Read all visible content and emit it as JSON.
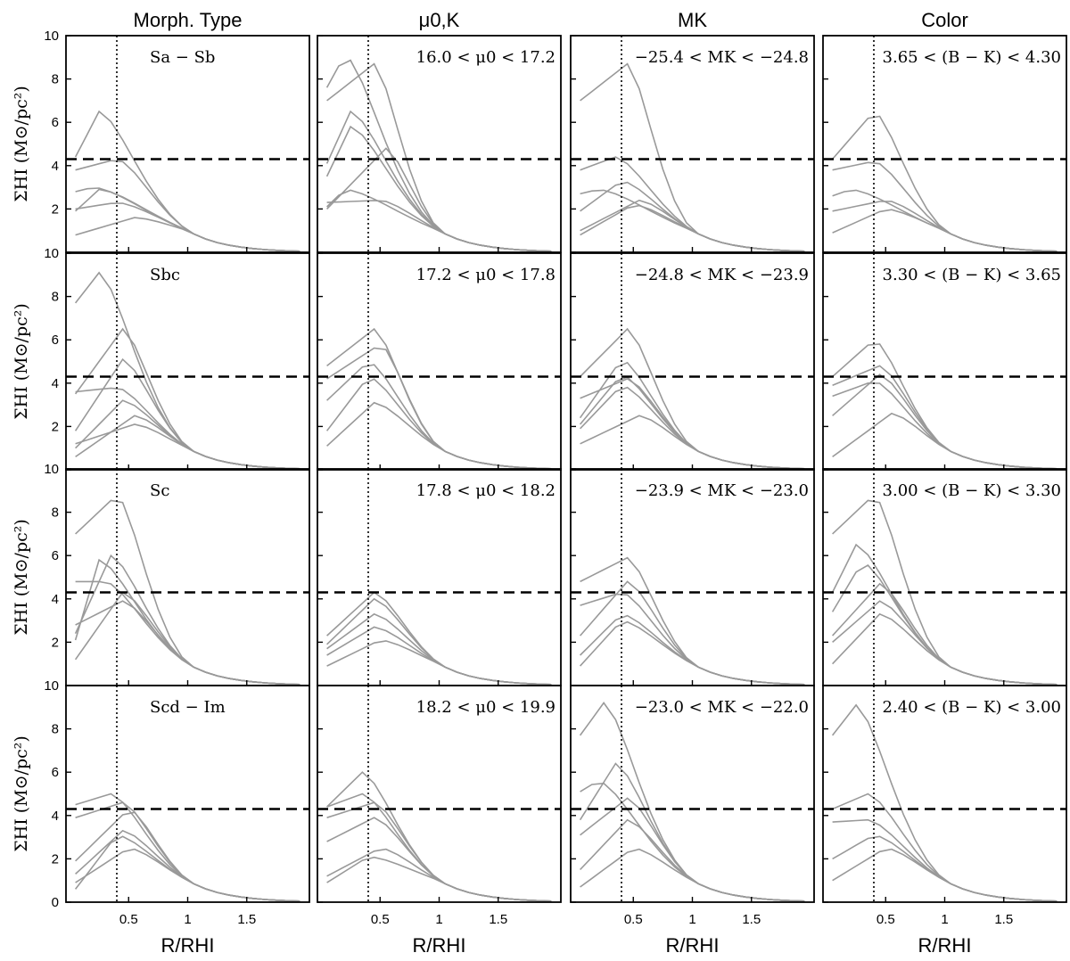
{
  "figure": {
    "col_titles": [
      "Morph. Type",
      "μ0,K",
      "MK",
      "Color"
    ],
    "ylabel": "ΣHI (M⊙/pc²)",
    "xlabel": "R/RHI",
    "ytick_labels": [
      "0",
      "2",
      "4",
      "6",
      "8",
      "10"
    ],
    "xtick_labels": [
      "0.5",
      "1",
      "1.5"
    ]
  },
  "colors": {
    "profile": "#999999",
    "axis": "#000000",
    "reference": "#000000"
  },
  "chart_data": {
    "type": "line",
    "rows": 4,
    "cols": 4,
    "xlim": [
      0,
      2.0
    ],
    "ylim": [
      0,
      10
    ],
    "reference_lines": {
      "horizontal_dashed_y": 4.3,
      "vertical_dotted_x": 0.4
    },
    "x": [
      0.05,
      0.15,
      0.25,
      0.35,
      0.45,
      0.55,
      0.65,
      0.75,
      0.85,
      0.95,
      1.05,
      1.15,
      1.25,
      1.35,
      1.45,
      1.55,
      1.65,
      1.75,
      1.85,
      1.95
    ],
    "panels": [
      {
        "label": "Sa − Sb",
        "series": [
          {
            "peak": 6.5,
            "peak_x": 0.25,
            "inner": 4.4
          },
          {
            "peak": 4.3,
            "peak_x": 0.4,
            "inner": 3.8
          },
          {
            "peak": 3.0,
            "peak_x": 0.2,
            "inner": 2.8
          },
          {
            "peak": 2.9,
            "peak_x": 0.25,
            "inner": 1.9
          },
          {
            "peak": 1.6,
            "peak_x": 0.55,
            "inner": 0.8
          },
          {
            "peak": 2.3,
            "peak_x": 0.4,
            "inner": 2.0
          }
        ]
      },
      {
        "label": "16.0 < μ0 < 17.2",
        "series": [
          {
            "peak": 9.1,
            "peak_x": 0.2,
            "inner": 7.6
          },
          {
            "peak": 8.7,
            "peak_x": 0.45,
            "inner": 7.0
          },
          {
            "peak": 6.5,
            "peak_x": 0.25,
            "inner": 4.1
          },
          {
            "peak": 5.8,
            "peak_x": 0.25,
            "inner": 3.5
          },
          {
            "peak": 4.8,
            "peak_x": 0.55,
            "inner": 2.0
          },
          {
            "peak": 2.9,
            "peak_x": 0.2,
            "inner": 2.1
          },
          {
            "peak": 2.4,
            "peak_x": 0.5,
            "inner": 2.3
          }
        ]
      },
      {
        "label": "−25.4 < MK < −24.8",
        "series": [
          {
            "peak": 8.7,
            "peak_x": 0.45,
            "inner": 7.0
          },
          {
            "peak": 4.4,
            "peak_x": 0.35,
            "inner": 3.8
          },
          {
            "peak": 3.3,
            "peak_x": 0.4,
            "inner": 1.9
          },
          {
            "peak": 2.9,
            "peak_x": 0.2,
            "inner": 2.7
          },
          {
            "peak": 2.4,
            "peak_x": 0.55,
            "inner": 1.0
          },
          {
            "peak": 2.2,
            "peak_x": 0.5,
            "inner": 0.8
          }
        ]
      },
      {
        "label": "3.65 < (B − K) < 4.30",
        "series": [
          {
            "peak": 6.5,
            "peak_x": 0.4,
            "inner": 4.3
          },
          {
            "peak": 4.2,
            "peak_x": 0.4,
            "inner": 3.8
          },
          {
            "peak": 2.9,
            "peak_x": 0.2,
            "inner": 2.6
          },
          {
            "peak": 2.4,
            "peak_x": 0.5,
            "inner": 1.9
          },
          {
            "peak": 2.0,
            "peak_x": 0.5,
            "inner": 0.9
          }
        ]
      },
      {
        "label": "Sbc",
        "series": [
          {
            "peak": 9.1,
            "peak_x": 0.25,
            "inner": 7.7
          },
          {
            "peak": 6.5,
            "peak_x": 0.45,
            "inner": 3.5
          },
          {
            "peak": 5.1,
            "peak_x": 0.45,
            "inner": 1.8
          },
          {
            "peak": 3.8,
            "peak_x": 0.4,
            "inner": 3.6
          },
          {
            "peak": 3.2,
            "peak_x": 0.45,
            "inner": 1.0
          },
          {
            "peak": 2.5,
            "peak_x": 0.55,
            "inner": 0.6
          },
          {
            "peak": 2.1,
            "peak_x": 0.55,
            "inner": 1.2
          }
        ]
      },
      {
        "label": "17.2 < μ0 < 17.8",
        "series": [
          {
            "peak": 6.5,
            "peak_x": 0.45,
            "inner": 4.8
          },
          {
            "peak": 5.8,
            "peak_x": 0.5,
            "inner": 4.2
          },
          {
            "peak": 5.0,
            "peak_x": 0.4,
            "inner": 3.2
          },
          {
            "peak": 4.3,
            "peak_x": 0.4,
            "inner": 1.8
          },
          {
            "peak": 3.1,
            "peak_x": 0.45,
            "inner": 1.1
          }
        ]
      },
      {
        "label": "−24.8 < MK < −23.9",
        "series": [
          {
            "peak": 6.5,
            "peak_x": 0.45,
            "inner": 4.3
          },
          {
            "peak": 5.1,
            "peak_x": 0.4,
            "inner": 2.4
          },
          {
            "peak": 4.4,
            "peak_x": 0.4,
            "inner": 2.1
          },
          {
            "peak": 4.2,
            "peak_x": 0.45,
            "inner": 3.3
          },
          {
            "peak": 3.9,
            "peak_x": 0.4,
            "inner": 1.9
          },
          {
            "peak": 2.5,
            "peak_x": 0.55,
            "inner": 1.2
          }
        ]
      },
      {
        "label": "3.30 < (B − K) < 3.65",
        "series": [
          {
            "peak": 6.0,
            "peak_x": 0.4,
            "inner": 4.3
          },
          {
            "peak": 4.8,
            "peak_x": 0.45,
            "inner": 3.9
          },
          {
            "peak": 4.4,
            "peak_x": 0.45,
            "inner": 2.5
          },
          {
            "peak": 4.1,
            "peak_x": 0.4,
            "inner": 3.4
          },
          {
            "peak": 2.6,
            "peak_x": 0.55,
            "inner": 0.6
          }
        ]
      },
      {
        "label": "Sc",
        "series": [
          {
            "peak": 8.8,
            "peak_x": 0.4,
            "inner": 7.0
          },
          {
            "peak": 6.0,
            "peak_x": 0.35,
            "inner": 2.4
          },
          {
            "peak": 5.8,
            "peak_x": 0.25,
            "inner": 2.1
          },
          {
            "peak": 4.8,
            "peak_x": 0.3,
            "inner": 4.8
          },
          {
            "peak": 4.3,
            "peak_x": 0.45,
            "inner": 1.2
          },
          {
            "peak": 3.9,
            "peak_x": 0.45,
            "inner": 2.8
          }
        ]
      },
      {
        "label": "17.8 < μ0 < 18.2",
        "series": [
          {
            "peak": 4.3,
            "peak_x": 0.45,
            "inner": 2.3
          },
          {
            "peak": 4.0,
            "peak_x": 0.45,
            "inner": 1.9
          },
          {
            "peak": 3.3,
            "peak_x": 0.45,
            "inner": 1.7
          },
          {
            "peak": 2.7,
            "peak_x": 0.45,
            "inner": 1.4
          },
          {
            "peak": 2.1,
            "peak_x": 0.5,
            "inner": 0.9
          }
        ]
      },
      {
        "label": "−23.9 < MK < −23.0",
        "series": [
          {
            "peak": 5.9,
            "peak_x": 0.45,
            "inner": 4.8
          },
          {
            "peak": 4.8,
            "peak_x": 0.45,
            "inner": 2.3
          },
          {
            "peak": 4.3,
            "peak_x": 0.4,
            "inner": 3.7
          },
          {
            "peak": 3.3,
            "peak_x": 0.4,
            "inner": 1.4
          },
          {
            "peak": 3.0,
            "peak_x": 0.4,
            "inner": 0.9
          }
        ]
      },
      {
        "label": "3.00 < (B − K) < 3.30",
        "series": [
          {
            "peak": 8.8,
            "peak_x": 0.4,
            "inner": 7.0
          },
          {
            "peak": 6.5,
            "peak_x": 0.25,
            "inner": 4.3
          },
          {
            "peak": 5.7,
            "peak_x": 0.3,
            "inner": 3.4
          },
          {
            "peak": 4.7,
            "peak_x": 0.45,
            "inner": 2.3
          },
          {
            "peak": 3.9,
            "peak_x": 0.45,
            "inner": 2.0
          },
          {
            "peak": 3.3,
            "peak_x": 0.45,
            "inner": 1.0
          }
        ]
      },
      {
        "label": "Scd − Im",
        "series": [
          {
            "peak": 5.0,
            "peak_x": 0.35,
            "inner": 4.5
          },
          {
            "peak": 4.6,
            "peak_x": 0.45,
            "inner": 3.9
          },
          {
            "peak": 4.3,
            "peak_x": 0.5,
            "inner": 1.9
          },
          {
            "peak": 3.3,
            "peak_x": 0.45,
            "inner": 1.3
          },
          {
            "peak": 3.1,
            "peak_x": 0.4,
            "inner": 0.6
          },
          {
            "peak": 2.5,
            "peak_x": 0.5,
            "inner": 0.9
          }
        ]
      },
      {
        "label": "18.2 < μ0 < 19.9",
        "series": [
          {
            "peak": 6.0,
            "peak_x": 0.35,
            "inner": 4.4
          },
          {
            "peak": 5.0,
            "peak_x": 0.35,
            "inner": 4.4
          },
          {
            "peak": 4.6,
            "peak_x": 0.45,
            "inner": 3.9
          },
          {
            "peak": 3.9,
            "peak_x": 0.45,
            "inner": 2.8
          },
          {
            "peak": 2.5,
            "peak_x": 0.5,
            "inner": 1.2
          },
          {
            "peak": 2.1,
            "peak_x": 0.4,
            "inner": 0.9
          }
        ]
      },
      {
        "label": "−23.0 < MK < −22.0",
        "series": [
          {
            "peak": 9.2,
            "peak_x": 0.25,
            "inner": 7.7
          },
          {
            "peak": 6.4,
            "peak_x": 0.35,
            "inner": 3.8
          },
          {
            "peak": 5.6,
            "peak_x": 0.2,
            "inner": 5.1
          },
          {
            "peak": 4.8,
            "peak_x": 0.45,
            "inner": 3.1
          },
          {
            "peak": 3.8,
            "peak_x": 0.45,
            "inner": 1.5
          },
          {
            "peak": 2.5,
            "peak_x": 0.5,
            "inner": 0.7
          }
        ]
      },
      {
        "label": "2.40 < (B − K) < 3.00",
        "series": [
          {
            "peak": 9.1,
            "peak_x": 0.25,
            "inner": 7.7
          },
          {
            "peak": 5.0,
            "peak_x": 0.35,
            "inner": 4.3
          },
          {
            "peak": 3.8,
            "peak_x": 0.35,
            "inner": 3.7
          },
          {
            "peak": 3.1,
            "peak_x": 0.4,
            "inner": 2.0
          },
          {
            "peak": 2.5,
            "peak_x": 0.5,
            "inner": 1.0
          }
        ]
      }
    ]
  }
}
